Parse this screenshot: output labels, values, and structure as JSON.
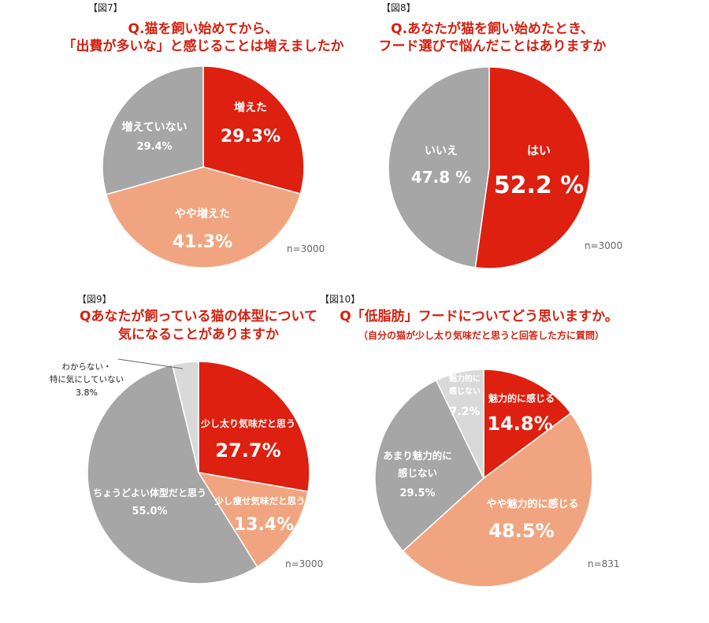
{
  "chart_data": [
    {
      "type": "pie",
      "figure_label": "【図7】",
      "title_lines": [
        "Q.猫を飼い始めてから、",
        "「出費が多いな」と感じることは増えましたか"
      ],
      "n_label": "n=3000",
      "colors": {
        "red": "#dd2010",
        "salmon": "#f0a580",
        "gray": "#a6a6a6",
        "light": "#d9d9d9"
      },
      "slices": [
        {
          "label": "増えた",
          "value": 29.3,
          "value_label": "29.3%",
          "color": "#dd2010"
        },
        {
          "label": "やや増えた",
          "value": 41.3,
          "value_label": "41.3%",
          "color": "#f0a580"
        },
        {
          "label": "増えていない",
          "value": 29.4,
          "value_label": "29.4%",
          "color": "#a6a6a6"
        }
      ]
    },
    {
      "type": "pie",
      "figure_label": "【図8】",
      "title_lines": [
        "Q.あなたが猫を飼い始めたとき、",
        "フード選びで悩んだことはありますか"
      ],
      "n_label": "n=3000",
      "slices": [
        {
          "label": "はい",
          "value": 52.2,
          "value_label": "52.2 %",
          "color": "#dd2010"
        },
        {
          "label": "いいえ",
          "value": 47.8,
          "value_label": "47.8 %",
          "color": "#a6a6a6"
        }
      ]
    },
    {
      "type": "pie",
      "figure_label": "【図9】",
      "title_lines": [
        "Qあなたが飼っている猫の体型について",
        "気になることがありますか"
      ],
      "n_label": "n=3000",
      "slices": [
        {
          "label": "少し太り気味だと思う",
          "value": 27.7,
          "value_label": "27.7%",
          "color": "#dd2010"
        },
        {
          "label": "少し痩せ気味だと思う",
          "value": 13.4,
          "value_label": "13.4%",
          "color": "#f0a580"
        },
        {
          "label": "ちょうどよい体型だと思う",
          "value": 55.0,
          "value_label": "55.0%",
          "color": "#a6a6a6"
        },
        {
          "label_lines": [
            "わからない・",
            "特に気にしていない"
          ],
          "value": 3.8,
          "value_label": "3.8%",
          "color": "#d9d9d9"
        }
      ]
    },
    {
      "type": "pie",
      "figure_label": "【図10】",
      "title_lines": [
        "Q「低脂肪」フードについてどう思いますか。"
      ],
      "subtitle": "（自分の猫が少し太り気味だと思うと回答した方に質問）",
      "n_label": "n=831",
      "slices": [
        {
          "label": "魅力的に感じる",
          "value": 14.8,
          "value_label": "14.8%",
          "color": "#dd2010"
        },
        {
          "label": "やや魅力的に感じる",
          "value": 48.5,
          "value_label": "48.5%",
          "color": "#f0a580"
        },
        {
          "label_lines": [
            "あまり魅力的に",
            "感じない"
          ],
          "value": 29.5,
          "value_label": "29.5%",
          "color": "#a6a6a6"
        },
        {
          "label_lines": [
            "魅力的に",
            "感じない"
          ],
          "value": 7.2,
          "value_label": "7.2%",
          "color": "#d9d9d9"
        }
      ]
    }
  ]
}
